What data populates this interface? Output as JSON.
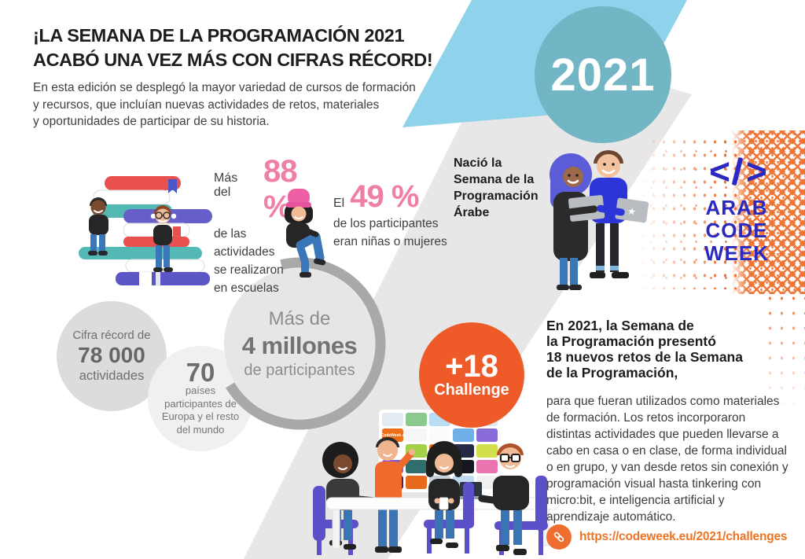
{
  "header": {
    "title_lines": [
      "¡LA SEMANA DE LA PROGRAMACIÓN 2021",
      "ACABÓ UNA VEZ MÁS CON CIFRAS RÉCORD!"
    ],
    "intro_lines": [
      "En esta edición se desplegó la mayor variedad de cursos de formación",
      "y recursos, que incluían nuevas actividades de retos, materiales",
      "y oportunidades de participar de su historia."
    ]
  },
  "year_badge": "2021",
  "stats": {
    "schools": {
      "prefix": "Más del",
      "value": "88 %",
      "lines": [
        "de las",
        "actividades",
        "se realizaron",
        "en escuelas"
      ]
    },
    "girls": {
      "prefix": "El",
      "value": "49 %",
      "lines": [
        "de los participantes",
        "eran niñas o mujeres"
      ]
    },
    "participants": {
      "line1": "Más de",
      "line2": "4 millones",
      "line3": "de participantes"
    },
    "activities": {
      "line1": "Cifra récord de",
      "value": "78 000",
      "line3": "actividades"
    },
    "countries": {
      "value": "70",
      "lines": [
        "países",
        "participantes de",
        "Europa y el resto",
        "del mundo"
      ]
    },
    "challenge_badge": {
      "value": "+18",
      "label": "Challenge"
    }
  },
  "arab_code_week": {
    "caption_lines": [
      "Nació la",
      "Semana de la",
      "Programación",
      "Árabe"
    ],
    "icon_left": "<",
    "icon_right": ">",
    "logo_lines": [
      "ARAB",
      "CODE",
      "WEEK"
    ]
  },
  "challenges_section": {
    "heading_lines": [
      "En 2021, la Semana de",
      "la Programación presentó",
      "18 nuevos retos de la Semana",
      "de la Programación,"
    ],
    "body_lines": [
      "para que fueran utilizados como materiales",
      "de formación. Los retos incorporaron",
      "distintas actividades que pueden llevarse a",
      "cabo en casa o en clase, de forma individual",
      "o en grupo, y  van desde retos sin conexión y",
      "programación visual hasta tinkering con",
      "micro:bit, e inteligencia artificial y",
      "aprendizaje automático."
    ],
    "link_url": "https://codeweek.eu/2021/challenges"
  },
  "card_wall": {
    "codeweek_label": "CodeWeek ⌕",
    "cards": [
      {
        "color": "#e3ebf3",
        "cw": false
      },
      {
        "color": "#8cc98c",
        "cw": false
      },
      {
        "color": "#b8ddf2",
        "cw": false
      },
      {
        "color": "#edf1f5",
        "cw": false
      },
      {
        "color": "#dfe9f0",
        "cw": false
      },
      {
        "color": "#ee6f1a",
        "cw": true
      },
      {
        "color": "#f6f6f6",
        "cw": false
      },
      {
        "color": "#fbfbfb",
        "cw": false
      },
      {
        "color": "#6fb0e8",
        "cw": false
      },
      {
        "color": "#8a6cd8",
        "cw": false
      },
      {
        "color": "#ffffff",
        "cw": false
      },
      {
        "color": "#a5d14a",
        "cw": false
      },
      {
        "color": "#ee6f1a",
        "cw": true
      },
      {
        "color": "#262b45",
        "cw": false
      },
      {
        "color": "#d3e04e",
        "cw": false
      },
      {
        "color": "#8a5ad6",
        "cw": false
      },
      {
        "color": "#2e6f6d",
        "cw": false
      },
      {
        "color": "#e8e8e8",
        "cw": false
      },
      {
        "color": "#15161f",
        "cw": false
      },
      {
        "color": "#ea74b0",
        "cw": false
      },
      {
        "color": "#3c2a6e",
        "cw": false
      },
      {
        "color": "#e86a1c",
        "cw": false
      },
      {
        "color": "#c9d2dc",
        "cw": false
      },
      {
        "color": "#bfd9ee",
        "cw": false
      },
      {
        "color": "#f0f0f0",
        "cw": false
      }
    ]
  },
  "colors": {
    "pink_accent": "#ef7fa6",
    "challenge_orange": "#ee5b28",
    "link_orange": "#ee6e30",
    "url_orange": "#ee7425",
    "year_teal": "#72b5c4",
    "band_light_blue": "#8ed2ec",
    "band_gray": "#e7e7e7",
    "arab_blue": "#2a2ac2",
    "pattern_orange": "#ee7333"
  }
}
